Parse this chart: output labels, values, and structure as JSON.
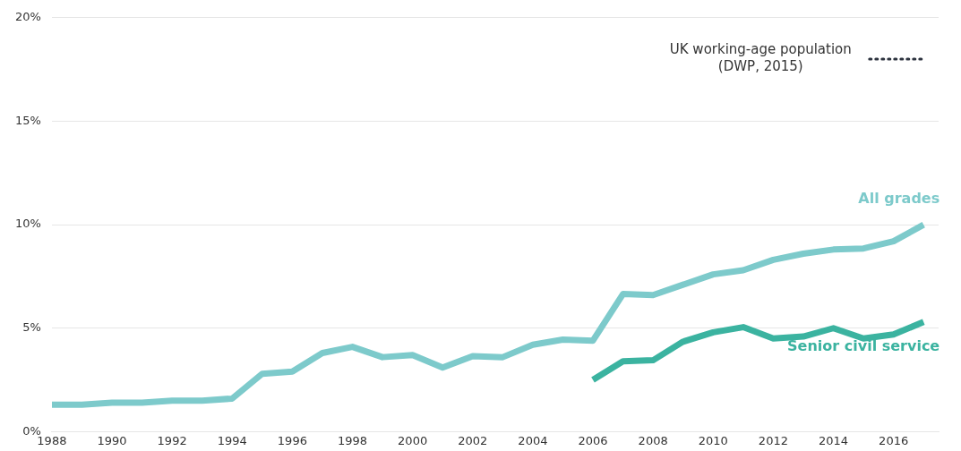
{
  "chart_data": {
    "type": "line",
    "x": [
      1988,
      1989,
      1990,
      1991,
      1992,
      1993,
      1994,
      1995,
      1996,
      1997,
      1998,
      1999,
      2000,
      2001,
      2002,
      2003,
      2004,
      2005,
      2006,
      2007,
      2008,
      2009,
      2010,
      2011,
      2012,
      2013,
      2014,
      2015,
      2016,
      2017
    ],
    "series": [
      {
        "name": "All grades",
        "color": "#7dcacb",
        "values": [
          1.3,
          1.3,
          1.4,
          1.4,
          1.5,
          1.5,
          1.6,
          2.8,
          2.9,
          3.8,
          4.1,
          3.6,
          3.7,
          3.1,
          3.65,
          3.6,
          4.2,
          4.45,
          4.4,
          6.65,
          6.6,
          7.1,
          7.6,
          7.8,
          8.3,
          8.6,
          8.8,
          8.85,
          9.2,
          10.0
        ]
      },
      {
        "name": "Senior civil service",
        "color": "#3bb3a0",
        "values": [
          null,
          null,
          null,
          null,
          null,
          null,
          null,
          null,
          null,
          null,
          null,
          null,
          null,
          null,
          null,
          null,
          null,
          null,
          2.5,
          3.4,
          3.45,
          4.35,
          4.8,
          5.05,
          4.5,
          4.6,
          5.0,
          4.5,
          4.7,
          5.3
        ]
      },
      {
        "name": "UK working-age population (DWP, 2015)",
        "color": "#2e3440",
        "type": "line",
        "line_style": "dotted",
        "x": [
          2015.2,
          2017
        ],
        "values": [
          18,
          18
        ]
      }
    ],
    "xlim": [
      1988,
      2017.5
    ],
    "xticks": [
      1988,
      1990,
      1992,
      1994,
      1996,
      1998,
      2000,
      2002,
      2004,
      2006,
      2008,
      2010,
      2012,
      2014,
      2016
    ],
    "ylim": [
      0,
      20
    ],
    "yticks": [
      {
        "value": 0,
        "label": "0%"
      },
      {
        "value": 5,
        "label": "5%"
      },
      {
        "value": 10,
        "label": "10%"
      },
      {
        "value": 15,
        "label": "15%"
      },
      {
        "value": 20,
        "label": "20%"
      }
    ],
    "grid": "y",
    "legend": false,
    "marker": "none",
    "line_style": "solid"
  }
}
